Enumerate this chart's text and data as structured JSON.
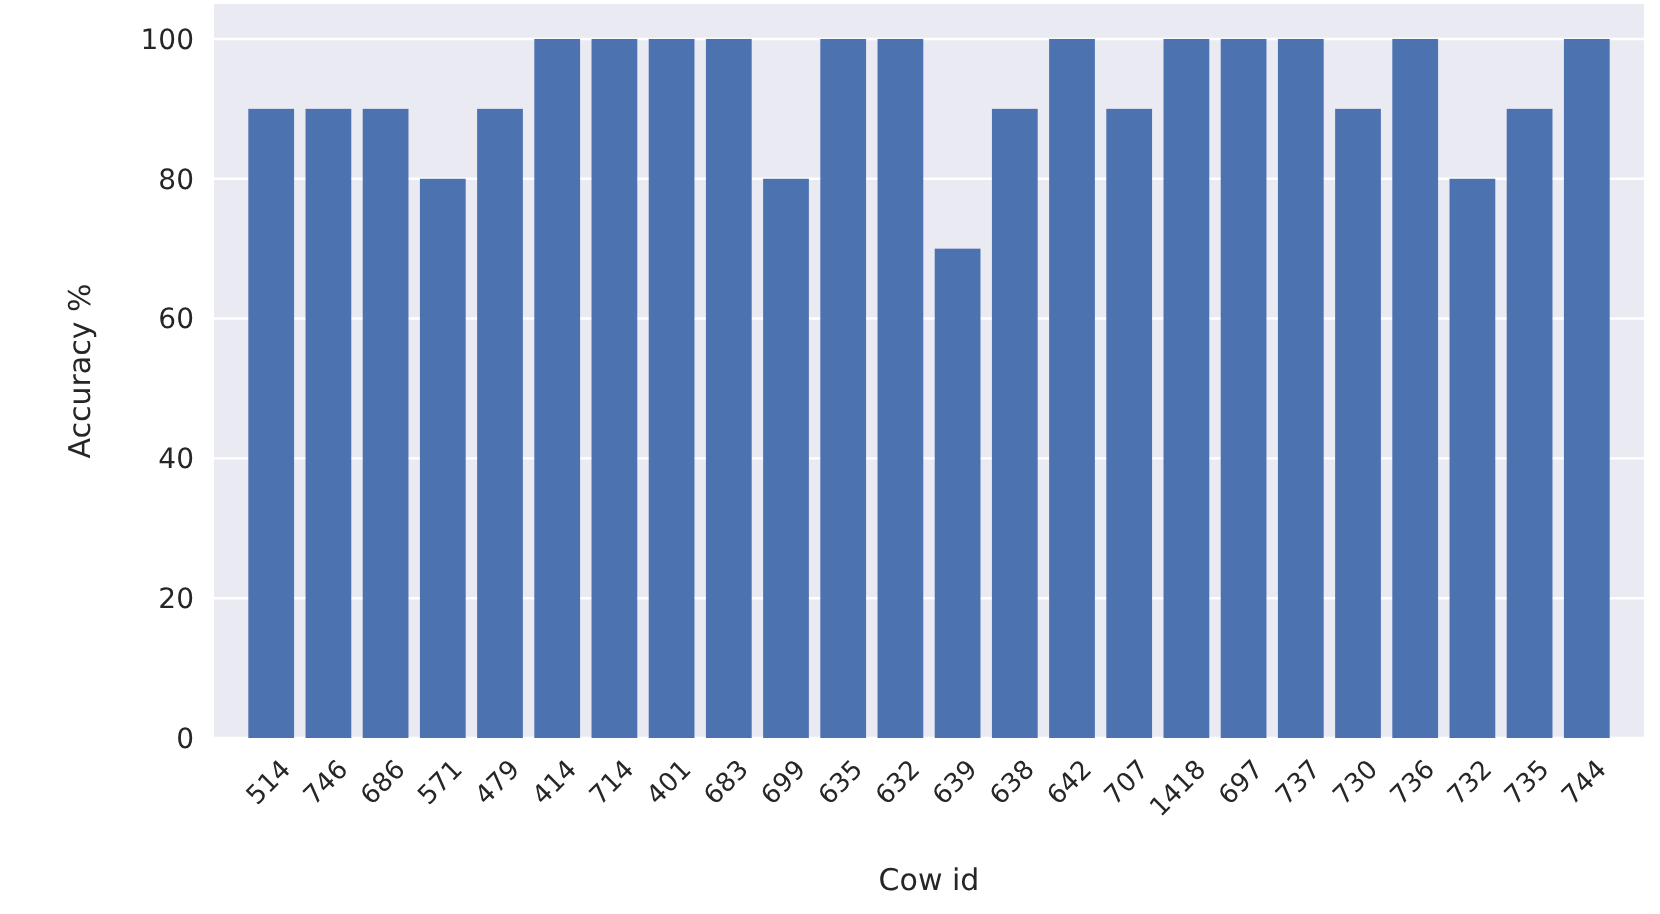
{
  "chart_data": {
    "type": "bar",
    "xlabel": "Cow id",
    "ylabel": "Accuracy %",
    "categories": [
      "514",
      "746",
      "686",
      "571",
      "479",
      "414",
      "714",
      "401",
      "683",
      "699",
      "635",
      "632",
      "639",
      "638",
      "642",
      "707",
      "1418",
      "697",
      "737",
      "730",
      "736",
      "732",
      "735",
      "744"
    ],
    "values": [
      90,
      90,
      90,
      80,
      90,
      100,
      100,
      100,
      100,
      80,
      100,
      100,
      70,
      90,
      100,
      90,
      100,
      100,
      100,
      90,
      100,
      80,
      90,
      100
    ],
    "color": "#4c72b0",
    "ylim": [
      0,
      105
    ],
    "yticks": [
      0,
      20,
      40,
      60,
      80,
      100
    ],
    "grid": "y"
  }
}
